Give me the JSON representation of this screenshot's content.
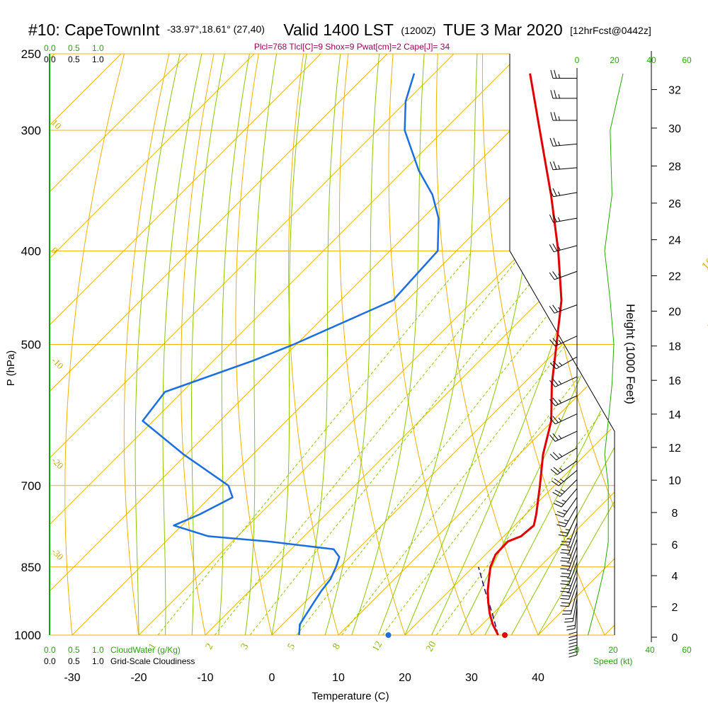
{
  "header": {
    "station": "#10: CapeTownInt",
    "coords": "-33.97°,18.61° (27,40)",
    "valid": "Valid 1400 LST",
    "zulu": "(1200Z)",
    "date": "TUE 3 Mar 2020",
    "forecast": "[12hrFcst@0442z]"
  },
  "indices": "Plcl=768 Tlcl[C]=9 Shox=9 Pwat[cm]=2 Cape[J]= 34",
  "cloud_scale": {
    "top_green": [
      "0.0",
      "0.5",
      "1.0"
    ],
    "top_black": [
      "0.0",
      "0.5",
      "1.0"
    ],
    "bottom_green": [
      "0.0",
      "0.5",
      "1.0"
    ],
    "bottom_black": [
      "0.0",
      "0.5",
      "1.0"
    ],
    "cloudwater_label": "CloudWater (g/Kg)",
    "cloudiness_label": "Grid-Scale Cloudiness"
  },
  "speed_scale": {
    "top": [
      "0",
      "20",
      "40",
      "60"
    ],
    "bottom": [
      "0",
      "20",
      "40",
      "60"
    ],
    "label": "Speed (kt)"
  },
  "axes": {
    "xlabel": "Temperature (C)",
    "ylabel": "P (hPa)",
    "height_label": "Height (1000 Feet)"
  },
  "colors": {
    "temperature": "#e00000",
    "dewpoint": "#1a6fe0",
    "isotherm": "#f0b000",
    "dry_adiabat": "#f0b000",
    "moist_adiabat": "#8cc800",
    "mixing_ratio": "#8cc800",
    "wind_speed": "#22aa00"
  },
  "chart_data": {
    "type": "skew-t",
    "x_ticks": [
      -30,
      -20,
      -10,
      0,
      10,
      20,
      30,
      40
    ],
    "p_ticks": [
      250,
      300,
      400,
      500,
      700,
      850,
      1000
    ],
    "height_ticks": [
      0,
      2,
      4,
      6,
      8,
      10,
      12,
      14,
      16,
      18,
      20,
      22,
      24,
      26,
      28,
      30,
      32
    ],
    "isotherm_labels": [
      "0",
      "10",
      "20",
      "30"
    ],
    "isotherm_label_left": [
      "10",
      "0",
      "-10",
      "-20",
      "-30"
    ],
    "mixing_ratio_labels": [
      "1",
      "2",
      "3",
      "5",
      "8",
      "12",
      "20"
    ],
    "temperature": [
      {
        "p": 1000,
        "t": 34.0
      },
      {
        "p": 975,
        "t": 31.6
      },
      {
        "p": 950,
        "t": 29.5
      },
      {
        "p": 925,
        "t": 27.6
      },
      {
        "p": 900,
        "t": 25.8
      },
      {
        "p": 875,
        "t": 24.2
      },
      {
        "p": 850,
        "t": 22.6
      },
      {
        "p": 825,
        "t": 21.5
      },
      {
        "p": 800,
        "t": 21.4
      },
      {
        "p": 790,
        "t": 22.6
      },
      {
        "p": 770,
        "t": 22.9
      },
      {
        "p": 750,
        "t": 21.6
      },
      {
        "p": 700,
        "t": 17.8
      },
      {
        "p": 650,
        "t": 13.6
      },
      {
        "p": 600,
        "t": 9.8
      },
      {
        "p": 550,
        "t": 4.4
      },
      {
        "p": 500,
        "t": -0.9
      },
      {
        "p": 450,
        "t": -6.8
      },
      {
        "p": 400,
        "t": -14.7
      },
      {
        "p": 350,
        "t": -24.2
      },
      {
        "p": 300,
        "t": -35.6
      },
      {
        "p": 262,
        "t": -45.6
      }
    ],
    "dewpoint": [
      {
        "p": 1000,
        "t": 4.1
      },
      {
        "p": 975,
        "t": 2.6
      },
      {
        "p": 950,
        "t": 2.0
      },
      {
        "p": 925,
        "t": 1.4
      },
      {
        "p": 900,
        "t": 0.8
      },
      {
        "p": 875,
        "t": 0.4
      },
      {
        "p": 850,
        "t": -0.6
      },
      {
        "p": 830,
        "t": -1.6
      },
      {
        "p": 815,
        "t": -3.6
      },
      {
        "p": 800,
        "t": -14.6
      },
      {
        "p": 790,
        "t": -24.4
      },
      {
        "p": 770,
        "t": -31.2
      },
      {
        "p": 750,
        "t": -29.0
      },
      {
        "p": 720,
        "t": -26.6
      },
      {
        "p": 700,
        "t": -29.0
      },
      {
        "p": 650,
        "t": -40.4
      },
      {
        "p": 600,
        "t": -51.6
      },
      {
        "p": 560,
        "t": -52.6
      },
      {
        "p": 520,
        "t": -44.1
      },
      {
        "p": 500,
        "t": -40.4
      },
      {
        "p": 450,
        "t": -32.1
      },
      {
        "p": 400,
        "t": -32.8
      },
      {
        "p": 370,
        "t": -37.6
      },
      {
        "p": 350,
        "t": -42.0
      },
      {
        "p": 330,
        "t": -47.8
      },
      {
        "p": 300,
        "t": -55.9
      },
      {
        "p": 280,
        "t": -60.1
      },
      {
        "p": 262,
        "t": -63.0
      }
    ],
    "parcel": [
      {
        "p": 1000,
        "t": 34.0
      },
      {
        "p": 950,
        "t": 29.9
      },
      {
        "p": 900,
        "t": 25.4
      },
      {
        "p": 850,
        "t": 20.8
      }
    ],
    "surface_temperature": 35.0,
    "surface_dewpoint": 17.5,
    "wind_speed_kt": [
      {
        "p": 1000,
        "v": 6
      },
      {
        "p": 950,
        "v": 9
      },
      {
        "p": 900,
        "v": 12
      },
      {
        "p": 850,
        "v": 15
      },
      {
        "p": 800,
        "v": 17
      },
      {
        "p": 750,
        "v": 17
      },
      {
        "p": 700,
        "v": 17
      },
      {
        "p": 650,
        "v": 15
      },
      {
        "p": 600,
        "v": 17
      },
      {
        "p": 550,
        "v": 19
      },
      {
        "p": 500,
        "v": 20
      },
      {
        "p": 450,
        "v": 18
      },
      {
        "p": 400,
        "v": 15
      },
      {
        "p": 350,
        "v": 19
      },
      {
        "p": 300,
        "v": 18
      },
      {
        "p": 262,
        "v": 25
      }
    ],
    "wind_barbs": [
      {
        "p": 990,
        "dir": 180,
        "spd": 20
      },
      {
        "p": 975,
        "dir": 180,
        "spd": 20
      },
      {
        "p": 960,
        "dir": 180,
        "spd": 20
      },
      {
        "p": 945,
        "dir": 180,
        "spd": 20
      },
      {
        "p": 930,
        "dir": 185,
        "spd": 20
      },
      {
        "p": 915,
        "dir": 190,
        "spd": 20
      },
      {
        "p": 900,
        "dir": 195,
        "spd": 20
      },
      {
        "p": 885,
        "dir": 200,
        "spd": 20
      },
      {
        "p": 870,
        "dir": 200,
        "spd": 15
      },
      {
        "p": 855,
        "dir": 200,
        "spd": 15
      },
      {
        "p": 840,
        "dir": 200,
        "spd": 15
      },
      {
        "p": 825,
        "dir": 200,
        "spd": 15
      },
      {
        "p": 810,
        "dir": 200,
        "spd": 15
      },
      {
        "p": 795,
        "dir": 200,
        "spd": 15
      },
      {
        "p": 780,
        "dir": 200,
        "spd": 15
      },
      {
        "p": 765,
        "dir": 200,
        "spd": 15
      },
      {
        "p": 750,
        "dir": 205,
        "spd": 15
      },
      {
        "p": 735,
        "dir": 210,
        "spd": 15
      },
      {
        "p": 720,
        "dir": 215,
        "spd": 15
      },
      {
        "p": 705,
        "dir": 220,
        "spd": 15
      },
      {
        "p": 690,
        "dir": 225,
        "spd": 15
      },
      {
        "p": 675,
        "dir": 230,
        "spd": 15
      },
      {
        "p": 660,
        "dir": 235,
        "spd": 15
      },
      {
        "p": 640,
        "dir": 240,
        "spd": 15
      },
      {
        "p": 615,
        "dir": 245,
        "spd": 15
      },
      {
        "p": 590,
        "dir": 245,
        "spd": 15
      },
      {
        "p": 565,
        "dir": 245,
        "spd": 15
      },
      {
        "p": 540,
        "dir": 245,
        "spd": 15
      },
      {
        "p": 515,
        "dir": 240,
        "spd": 15
      },
      {
        "p": 490,
        "dir": 245,
        "spd": 15
      },
      {
        "p": 455,
        "dir": 250,
        "spd": 15
      },
      {
        "p": 420,
        "dir": 250,
        "spd": 15
      },
      {
        "p": 395,
        "dir": 255,
        "spd": 15
      },
      {
        "p": 370,
        "dir": 260,
        "spd": 15
      },
      {
        "p": 348,
        "dir": 260,
        "spd": 15
      },
      {
        "p": 328,
        "dir": 265,
        "spd": 15
      },
      {
        "p": 310,
        "dir": 265,
        "spd": 15
      },
      {
        "p": 293,
        "dir": 270,
        "spd": 15
      },
      {
        "p": 278,
        "dir": 270,
        "spd": 15
      },
      {
        "p": 265,
        "dir": 270,
        "spd": 15
      }
    ]
  }
}
